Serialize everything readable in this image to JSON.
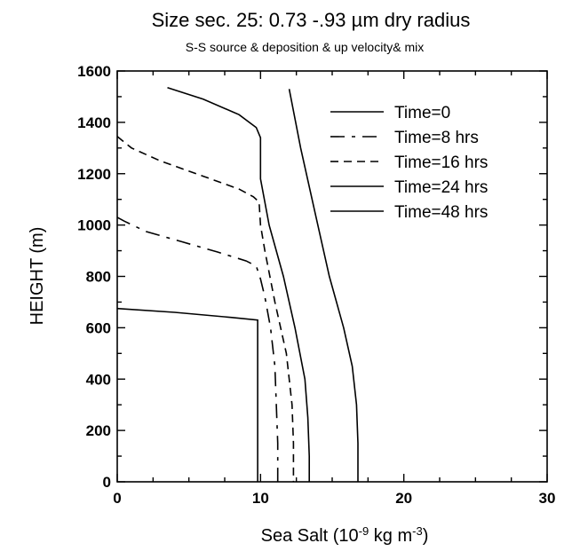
{
  "chart_data": {
    "type": "line",
    "title": "Size sec. 25: 0.73 -.93 µm dry radius",
    "subtitle": "S-S source & deposition & up velocity& mix",
    "xlabel": "Sea Salt (10⁻⁹ kg m⁻³)",
    "ylabel": "HEIGHT (m)",
    "xlim": [
      0,
      30
    ],
    "ylim": [
      0,
      1600
    ],
    "xticks": [
      0,
      10,
      20,
      30
    ],
    "yticks": [
      0,
      200,
      400,
      600,
      800,
      1000,
      1200,
      1400,
      1600
    ],
    "legend_position": "top-right",
    "grid": false,
    "series": [
      {
        "name": "Time=0",
        "dash": "",
        "points": [
          [
            12.0,
            1530
          ],
          [
            12.8,
            1300
          ],
          [
            13.8,
            1050
          ],
          [
            14.8,
            800
          ],
          [
            15.8,
            600
          ],
          [
            16.4,
            450
          ],
          [
            16.7,
            300
          ],
          [
            16.8,
            150
          ],
          [
            16.8,
            0
          ]
        ]
      },
      {
        "name": "Time=8 hrs",
        "dash": "16 8 4 8",
        "points": [
          [
            0.0,
            1030
          ],
          [
            0.5,
            1015
          ],
          [
            2.0,
            975
          ],
          [
            4.5,
            935
          ],
          [
            7.0,
            895
          ],
          [
            9.0,
            860
          ],
          [
            9.7,
            840
          ],
          [
            10.0,
            790
          ],
          [
            10.3,
            720
          ],
          [
            10.7,
            600
          ],
          [
            11.0,
            450
          ],
          [
            11.1,
            300
          ],
          [
            11.2,
            150
          ],
          [
            11.2,
            0
          ]
        ]
      },
      {
        "name": "Time=16 hrs",
        "dash": "9 6",
        "points": [
          [
            0.0,
            1345
          ],
          [
            1.0,
            1300
          ],
          [
            3.0,
            1250
          ],
          [
            6.0,
            1190
          ],
          [
            8.5,
            1140
          ],
          [
            9.5,
            1110
          ],
          [
            9.9,
            1090
          ],
          [
            10.0,
            1000
          ],
          [
            10.3,
            900
          ],
          [
            11.0,
            700
          ],
          [
            11.8,
            500
          ],
          [
            12.2,
            300
          ],
          [
            12.3,
            150
          ],
          [
            12.3,
            0
          ]
        ]
      },
      {
        "name": "Time=24 hrs",
        "dash": "",
        "points": [
          [
            3.5,
            1535
          ],
          [
            6.0,
            1490
          ],
          [
            8.5,
            1430
          ],
          [
            9.7,
            1380
          ],
          [
            10.0,
            1340
          ],
          [
            10.0,
            1180
          ],
          [
            10.6,
            1000
          ],
          [
            11.6,
            800
          ],
          [
            12.4,
            600
          ],
          [
            13.1,
            400
          ],
          [
            13.3,
            250
          ],
          [
            13.4,
            100
          ],
          [
            13.4,
            0
          ]
        ]
      },
      {
        "name": "Time=48 hrs",
        "dash": "",
        "points": [
          [
            0.0,
            675
          ],
          [
            4.0,
            660
          ],
          [
            8.0,
            640
          ],
          [
            9.8,
            630
          ],
          [
            9.8,
            0
          ]
        ]
      }
    ]
  }
}
